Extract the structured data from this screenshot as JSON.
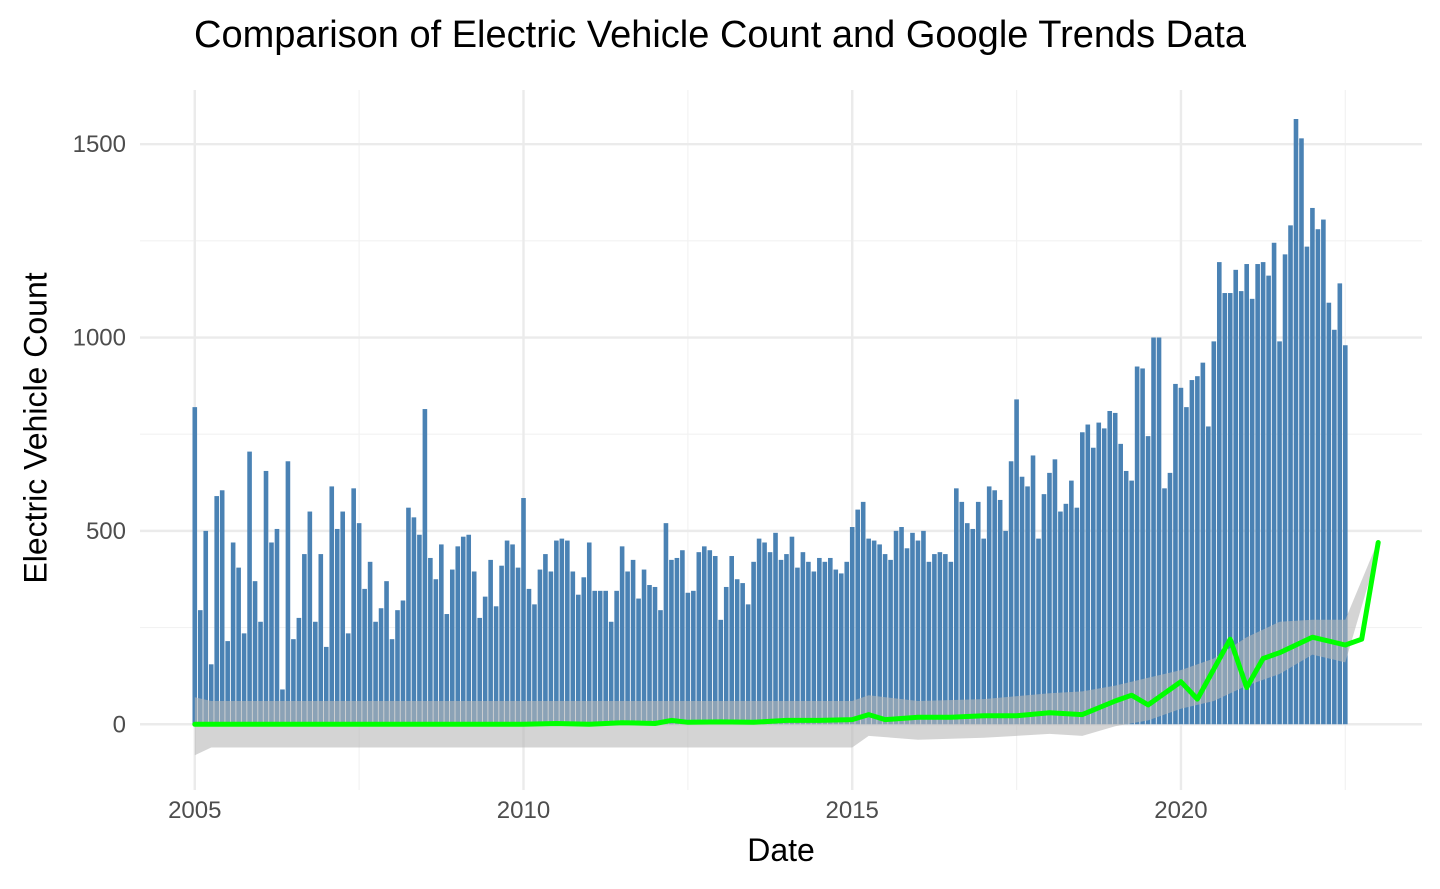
{
  "chart_data": {
    "type": "bar",
    "title": "Comparison of Electric Vehicle Count and Google Trends Data",
    "xlabel": "Date",
    "ylabel": "Electric Vehicle Count",
    "x_ticks": [
      "2005",
      "2010",
      "2015",
      "2020"
    ],
    "y_ticks": [
      "0",
      "500",
      "1000",
      "1500"
    ],
    "xlim": [
      "2004-03-01",
      "2023-09-01"
    ],
    "ylim": [
      -170,
      1640
    ],
    "grid": true,
    "legend": "none",
    "colors": {
      "bar": "#4a82b4",
      "trend_line": "#00ff00",
      "band": "#b8b8b8",
      "grid": "#ebebeb"
    },
    "bars": {
      "start": "2005-01",
      "interval": "monthly",
      "values": [
        820,
        295,
        500,
        155,
        590,
        605,
        215,
        470,
        405,
        235,
        705,
        370,
        265,
        655,
        470,
        505,
        90,
        680,
        220,
        275,
        440,
        550,
        265,
        440,
        200,
        615,
        505,
        550,
        235,
        610,
        520,
        350,
        420,
        265,
        300,
        370,
        220,
        295,
        320,
        560,
        535,
        490,
        815,
        430,
        375,
        465,
        285,
        400,
        460,
        485,
        490,
        395,
        275,
        330,
        425,
        305,
        410,
        475,
        465,
        405,
        585,
        350,
        310,
        400,
        440,
        395,
        475,
        480,
        475,
        395,
        335,
        380,
        470,
        345,
        345,
        345,
        265,
        345,
        460,
        395,
        425,
        325,
        400,
        360,
        355,
        295,
        520,
        425,
        430,
        450,
        340,
        345,
        445,
        460,
        450,
        435,
        270,
        355,
        435,
        375,
        365,
        310,
        420,
        480,
        470,
        445,
        495,
        425,
        440,
        485,
        405,
        445,
        420,
        395,
        430,
        420,
        430,
        400,
        390,
        420,
        510,
        555,
        575,
        480,
        475,
        465,
        440,
        425,
        500,
        510,
        455,
        495,
        475,
        500,
        420,
        440,
        445,
        440,
        420,
        610,
        575,
        520,
        505,
        575,
        480,
        615,
        605,
        580,
        500,
        680,
        840,
        640,
        615,
        695,
        480,
        595,
        650,
        685,
        550,
        570,
        630,
        560,
        755,
        775,
        715,
        780,
        765,
        810,
        805,
        725,
        655,
        630,
        925,
        920,
        745,
        1000,
        1000,
        610,
        650,
        880,
        870,
        820,
        890,
        900,
        935,
        770,
        990,
        1195,
        1115,
        1115,
        1175,
        1120,
        1190,
        1100,
        1190,
        1195,
        1160,
        1245,
        990,
        1215,
        1290,
        1565,
        1515,
        1235,
        1335,
        1280,
        1305,
        1090,
        1020,
        1140,
        980
      ]
    },
    "trend_line": {
      "x": [
        "2005-01",
        "2006-01",
        "2007-01",
        "2008-01",
        "2009-01",
        "2010-01",
        "2010-07",
        "2011-01",
        "2011-07",
        "2012-01",
        "2012-04",
        "2012-07",
        "2013-01",
        "2013-07",
        "2014-01",
        "2014-07",
        "2015-01",
        "2015-04",
        "2015-07",
        "2016-01",
        "2016-07",
        "2017-01",
        "2017-07",
        "2018-01",
        "2018-07",
        "2019-01",
        "2019-04",
        "2019-07",
        "2020-01",
        "2020-04",
        "2020-10",
        "2021-01",
        "2021-04",
        "2021-07",
        "2022-01",
        "2022-07",
        "2022-10",
        "2023-01"
      ],
      "y": [
        0,
        0,
        0,
        0,
        0,
        0,
        2,
        0,
        4,
        2,
        10,
        5,
        6,
        5,
        10,
        10,
        12,
        25,
        12,
        18,
        18,
        22,
        22,
        30,
        25,
        60,
        75,
        50,
        110,
        65,
        220,
        95,
        170,
        185,
        225,
        205,
        220,
        470
      ]
    },
    "band": {
      "x": [
        "2005-01",
        "2005-04",
        "2006-01",
        "2007-01",
        "2008-01",
        "2009-01",
        "2010-01",
        "2011-01",
        "2012-01",
        "2013-01",
        "2014-01",
        "2015-01",
        "2015-04",
        "2016-01",
        "2017-01",
        "2018-01",
        "2018-07",
        "2019-01",
        "2019-07",
        "2020-01",
        "2020-07",
        "2021-01",
        "2021-07",
        "2022-01",
        "2022-07",
        "2023-01"
      ],
      "upper": [
        70,
        60,
        60,
        60,
        60,
        60,
        60,
        60,
        60,
        60,
        60,
        60,
        75,
        60,
        65,
        80,
        85,
        100,
        120,
        140,
        170,
        225,
        265,
        270,
        270,
        475
      ],
      "lower": [
        -80,
        -60,
        -60,
        -60,
        -60,
        -60,
        -60,
        -60,
        -60,
        -60,
        -60,
        -60,
        -30,
        -40,
        -35,
        -25,
        -30,
        -5,
        10,
        40,
        60,
        100,
        130,
        180,
        160,
        450
      ]
    }
  }
}
